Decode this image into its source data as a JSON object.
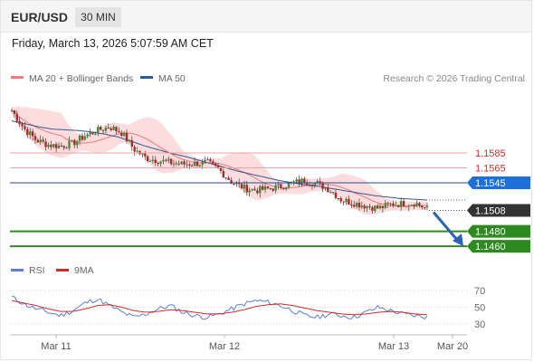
{
  "header": {
    "symbol": "EUR/USD",
    "timeframe": "30 MIN",
    "datetime": "Friday, March 13, 2026 5:07:59 AM CET"
  },
  "legend": {
    "ma20": "MA 20 + Bollinger Bands",
    "ma50": "MA 50",
    "copyright": "Research © 2026 Trading Central",
    "rsi": "RSI",
    "rsi_ma": "9MA"
  },
  "colors": {
    "resistance": "#e0262b",
    "pivot": "#1f4e99",
    "support": "#2c8a1e",
    "current": "#333333",
    "ma20": "#f07a7a",
    "band": "#fbd6d6",
    "ma50": "#2d5a9a",
    "bull": "#3f8f3a",
    "bear": "#b32626",
    "rsi": "#5b7fd4",
    "rsi_ma": "#d12a2a"
  },
  "chart_data": {
    "type": "candlestick",
    "title": "EUR/USD",
    "timeframe": "30 MIN",
    "x_ticks": [
      "Mar 11",
      "Mar 12",
      "Mar 13",
      "Mar 20"
    ],
    "levels": [
      {
        "value": 1.1585,
        "label": "1.1585",
        "kind": "resistance"
      },
      {
        "value": 1.1565,
        "label": "1.1565",
        "kind": "resistance"
      },
      {
        "value": 1.1545,
        "label": "1.1545",
        "kind": "pivot"
      },
      {
        "value": 1.1508,
        "label": "1.1508",
        "kind": "current"
      },
      {
        "value": 1.148,
        "label": "1.1480",
        "kind": "support"
      },
      {
        "value": 1.146,
        "label": "1.1460",
        "kind": "support"
      }
    ],
    "price_path": [
      1.1642,
      1.1618,
      1.1602,
      1.1596,
      1.1594,
      1.1598,
      1.1608,
      1.1615,
      1.162,
      1.1612,
      1.159,
      1.1578,
      1.1575,
      1.1572,
      1.157,
      1.1571,
      1.1572,
      1.1562,
      1.1546,
      1.1538,
      1.1535,
      1.1537,
      1.154,
      1.1545,
      1.1548,
      1.1544,
      1.1536,
      1.1522,
      1.1518,
      1.1514,
      1.1511,
      1.1516,
      1.1517,
      1.1518,
      1.151
    ],
    "ma50_path": [
      1.1628,
      1.1624,
      1.162,
      1.1617,
      1.1616,
      1.1615,
      1.1613,
      1.161,
      1.1606,
      1.16,
      1.1594,
      1.1589,
      1.1584,
      1.158,
      1.1575,
      1.157,
      1.1565,
      1.156,
      1.1556,
      1.1552,
      1.1548,
      1.1545,
      1.1542,
      1.154,
      1.1537,
      1.1534,
      1.1531,
      1.1528,
      1.1526,
      1.1524,
      1.1523,
      1.1522
    ],
    "forecast": {
      "from": 1.1508,
      "to": 1.146
    },
    "rsi": {
      "levels": [
        70,
        50,
        30
      ],
      "values": [
        62,
        54,
        48,
        44,
        40,
        46,
        55,
        60,
        52,
        44,
        38,
        42,
        48,
        52,
        44,
        40,
        38,
        42,
        48,
        54,
        58,
        56,
        52,
        46,
        40,
        38,
        42,
        40,
        38,
        44,
        50,
        46,
        42,
        40,
        38
      ],
      "ma9": [
        58,
        55,
        52,
        48,
        45,
        45,
        48,
        52,
        53,
        50,
        46,
        44,
        45,
        47,
        46,
        44,
        42,
        42,
        44,
        47,
        51,
        53,
        54,
        52,
        49,
        46,
        44,
        42,
        41,
        42,
        44,
        45,
        44,
        42,
        41
      ]
    }
  }
}
